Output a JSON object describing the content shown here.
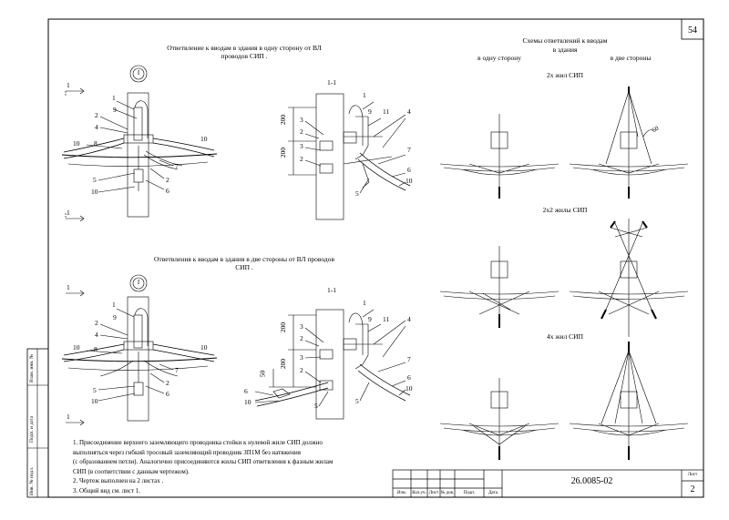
{
  "sheet_number": "54",
  "left_top_title": "Ответвление к вводам в здания в одну сторону от ВЛ проводов СИП .",
  "left_bottom_title": "Ответвления к вводам в здания в две стороны от ВЛ проводов СИП .",
  "right_header": {
    "line1": "Схемы ответвлений к вводам",
    "line2": "в здания",
    "col_one_side": "в одну сторону",
    "col_two_sides": "в две стороны"
  },
  "schemes": [
    {
      "title": "2х жил СИП"
    },
    {
      "title": "2х2 жилы СИП"
    },
    {
      "title": "4х жил СИП"
    }
  ],
  "angle_label": "60",
  "section_label": "1-1",
  "view_circle": "I",
  "cut_marker": "1",
  "callouts": [
    "1",
    "2",
    "3",
    "4",
    "5",
    "6",
    "7",
    "8",
    "9",
    "10",
    "11"
  ],
  "dims": {
    "d200": "200",
    "d50": "50"
  },
  "notes": [
    "1. Присоединение верхнего заземляющего проводника стойки к нулевой жиле СИП должно",
    "выполняться через гибкий тросовый заземляющий проводник ЗП1М без натяжения",
    "(с образованием петли). Аналогично присоединяются жилы СИП ответвления к фазным жилам",
    "СИП (в соответствии с данным чертежом).",
    "2. Чертеж выполнен на 2 листах .",
    "3. Общий вид см. лист 1."
  ],
  "title_block": {
    "doc_code": "26.0085-02",
    "sheet_label": "Лист",
    "sheet_value": "2",
    "columns": [
      "Изм.",
      "Кол.уч.",
      "Лист",
      "№ док.",
      "Подп.",
      "Дата"
    ]
  },
  "side_labels": [
    "Взам. инв. №",
    "Подп. и дата",
    "Инв. № подл."
  ]
}
